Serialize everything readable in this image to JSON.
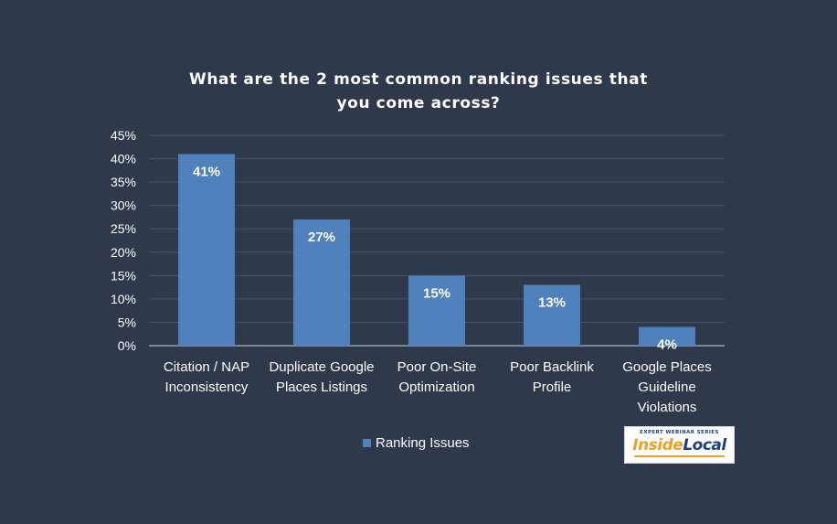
{
  "chart_data": {
    "type": "bar",
    "title": "What are the 2 most common ranking issues that you come across?",
    "categories": [
      [
        "Citation / NAP",
        "Inconsistency"
      ],
      [
        "Duplicate Google",
        "Places Listings"
      ],
      [
        "Poor On-Site",
        "Optimization"
      ],
      [
        "Poor Backlink",
        "Profile"
      ],
      [
        "Google Places",
        "Guideline",
        "Violations"
      ]
    ],
    "series": [
      {
        "name": "Ranking Issues",
        "values": [
          41,
          27,
          15,
          13,
          4
        ]
      }
    ],
    "data_labels": [
      "41%",
      "27%",
      "15%",
      "13%",
      "4%"
    ],
    "y_ticks": [
      "0%",
      "5%",
      "10%",
      "15%",
      "20%",
      "25%",
      "30%",
      "35%",
      "40%",
      "45%"
    ],
    "ylim": [
      0,
      45
    ],
    "grid": true,
    "legend_position": "bottom",
    "colors": {
      "bar": "#4f81bd",
      "background": "#2e3a4c",
      "grid": "#465366",
      "axis": "#a9b4c4",
      "text": "#ffffff"
    }
  },
  "title_lines": [
    "What are the 2 most common ranking issues that",
    "you come across?"
  ],
  "logo": {
    "top_text": "EXPERT WEBINAR SERIES",
    "word1": "Inside",
    "word2": "Local"
  }
}
